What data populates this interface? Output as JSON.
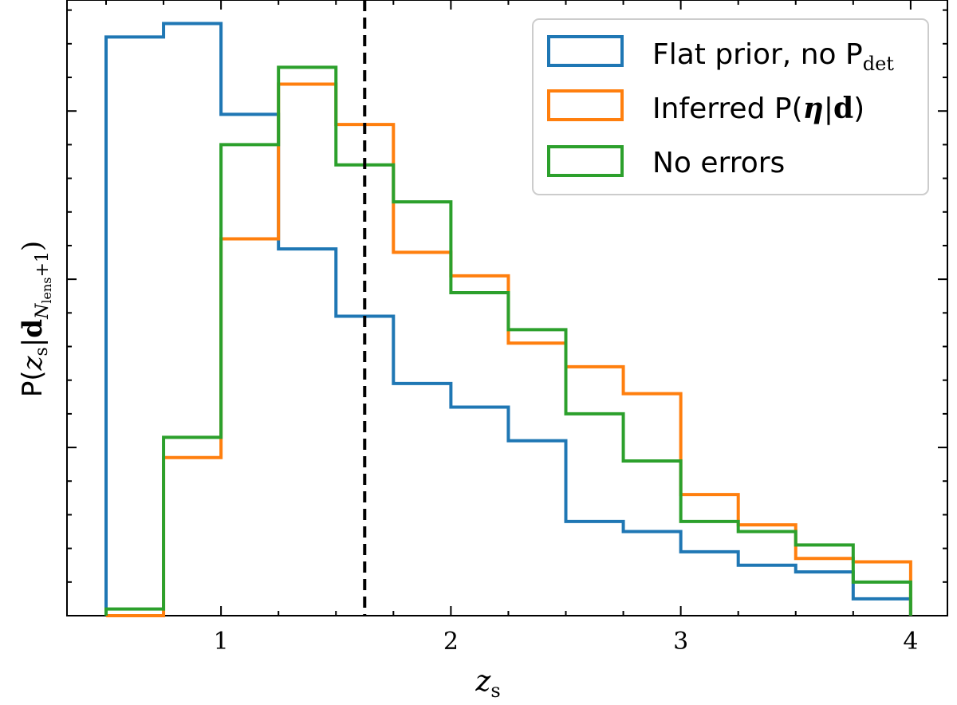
{
  "chart_data": {
    "type": "histogram-step",
    "xlabel": "z_s",
    "ylabel": "P(z_s|d_{N_lens+1})",
    "xlim": [
      0.33,
      4.16
    ],
    "ylim": [
      0,
      1.83
    ],
    "x_ticks": [
      1,
      2,
      3,
      4
    ],
    "x_tick_labels": [
      "1",
      "2",
      "3",
      "4"
    ],
    "x_minor_step": 0.25,
    "y_major_ticks": [
      0.5,
      1.0,
      1.5
    ],
    "y_minor_step": 0.1,
    "y_tick_labels_shown": false,
    "grid": false,
    "legend_position": "top-right",
    "bin_edges": [
      0.5,
      0.75,
      1.0,
      1.25,
      1.5,
      1.75,
      2.0,
      2.25,
      2.5,
      2.75,
      3.0,
      3.25,
      3.5,
      3.75,
      4.0
    ],
    "series": [
      {
        "name": "Flat prior, no P_det",
        "color": "#1f77b4",
        "values": [
          1.72,
          1.76,
          1.49,
          1.09,
          0.89,
          0.69,
          0.62,
          0.52,
          0.28,
          0.25,
          0.19,
          0.15,
          0.13,
          0.05
        ]
      },
      {
        "name": "Inferred P(η|d)",
        "color": "#ff7f0e",
        "values": [
          0.0,
          0.47,
          1.12,
          1.58,
          1.46,
          1.08,
          1.01,
          0.81,
          0.74,
          0.66,
          0.36,
          0.27,
          0.17,
          0.16
        ]
      },
      {
        "name": "No errors",
        "color": "#2ca02c",
        "values": [
          0.02,
          0.53,
          1.4,
          1.63,
          1.34,
          1.23,
          0.96,
          0.85,
          0.6,
          0.46,
          0.28,
          0.25,
          0.21,
          0.1
        ]
      }
    ],
    "vline": {
      "x": 1.625,
      "color": "#000000",
      "style": "dashed"
    }
  },
  "legend": {
    "items": [
      {
        "label_main": "Flat prior, no P",
        "label_sub": "det",
        "color": "#1f77b4"
      },
      {
        "label_main": "Inferred P(",
        "label_bold": "η",
        "label_bar": "|",
        "label_boldd": "d",
        "label_end": ")",
        "color": "#ff7f0e"
      },
      {
        "label_main": "No errors",
        "color": "#2ca02c"
      }
    ]
  },
  "axes": {
    "xlabel_main": "z",
    "xlabel_sub": "s",
    "ylabel_main": "P(",
    "ylabel_z": "z",
    "ylabel_zsub": "s",
    "ylabel_bar": "|",
    "ylabel_d": "d",
    "ylabel_dsub": "N",
    "ylabel_dsubsub": "lens",
    "ylabel_plus": "+1",
    "ylabel_end": ")"
  }
}
